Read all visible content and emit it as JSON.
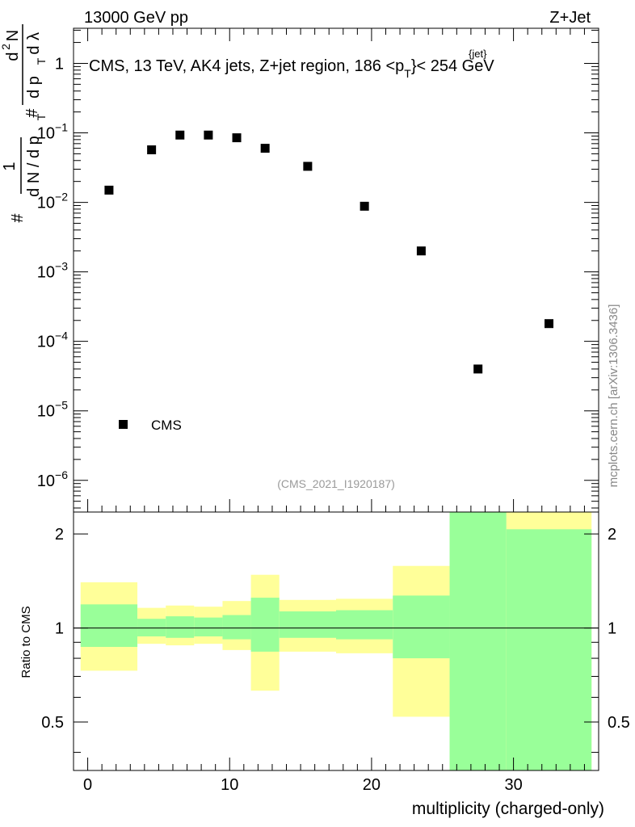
{
  "header": {
    "energy_label": "13000 GeV pp",
    "process_label": "Z+Jet"
  },
  "side_label": "mcplots.cern.ch [arXiv:1306.3436]",
  "chart_data": [
    {
      "type": "scatter",
      "panel": "main",
      "title": "CMS, 13 TeV, AK4 jets, Z+jet region, 186 <p",
      "title_sup": "{jet}",
      "title_sub": "T",
      "title_tail": "}< 254 GeV",
      "ylabel_parts": [
        "#",
        "1",
        "d N / d p",
        "T",
        "#",
        "d",
        "2",
        "N",
        "d p",
        "T",
        "d",
        "λ"
      ],
      "yscale": "log",
      "ylim": [
        3.5e-07,
        3.2
      ],
      "y_ticks": [
        {
          "value": 1,
          "label": "1",
          "base": "",
          "exp": ""
        },
        {
          "value": 0.1,
          "label": "",
          "base": "10",
          "exp": "−1"
        },
        {
          "value": 0.01,
          "label": "",
          "base": "10",
          "exp": "−2"
        },
        {
          "value": 0.001,
          "label": "",
          "base": "10",
          "exp": "−3"
        },
        {
          "value": 0.0001,
          "label": "",
          "base": "10",
          "exp": "−4"
        },
        {
          "value": 1e-05,
          "label": "",
          "base": "10",
          "exp": "−5"
        },
        {
          "value": 1e-06,
          "label": "",
          "base": "10",
          "exp": "−6"
        }
      ],
      "xlim": [
        -1,
        36
      ],
      "legend": {
        "placement": "bottom-left",
        "entries": [
          "CMS"
        ]
      },
      "analysis_label": "(CMS_2021_I1920187)",
      "series": [
        {
          "name": "CMS",
          "x": [
            1.5,
            4.5,
            6.5,
            8.5,
            10.5,
            12.5,
            15.5,
            19.5,
            23.5,
            27.5,
            32.5
          ],
          "y": [
            0.015,
            0.057,
            0.093,
            0.093,
            0.085,
            0.06,
            0.033,
            0.0088,
            0.002,
            4e-05,
            0.00018
          ]
        }
      ]
    },
    {
      "type": "area",
      "panel": "ratio",
      "ylabel": "Ratio to CMS",
      "xlabel": "multiplicity (charged-only)",
      "yscale": "log",
      "ylim": [
        0.35,
        2.35
      ],
      "xlim": [
        -1,
        36
      ],
      "x_ticks": [
        0,
        10,
        20,
        30
      ],
      "y_ticks": [
        {
          "value": 0.5,
          "label": "0.5"
        },
        {
          "value": 1,
          "label": "1"
        },
        {
          "value": 2,
          "label": "2"
        }
      ],
      "reference_line": 1,
      "bands": [
        {
          "x0": -0.5,
          "x1": 3.5,
          "inner": [
            0.87,
            1.19
          ],
          "outer": [
            0.73,
            1.4
          ]
        },
        {
          "x0": 3.5,
          "x1": 5.5,
          "inner": [
            0.94,
            1.07
          ],
          "outer": [
            0.89,
            1.16
          ]
        },
        {
          "x0": 5.5,
          "x1": 7.5,
          "inner": [
            0.93,
            1.09
          ],
          "outer": [
            0.88,
            1.18
          ]
        },
        {
          "x0": 7.5,
          "x1": 9.5,
          "inner": [
            0.94,
            1.08
          ],
          "outer": [
            0.89,
            1.17
          ]
        },
        {
          "x0": 9.5,
          "x1": 11.5,
          "inner": [
            0.92,
            1.1
          ],
          "outer": [
            0.85,
            1.22
          ]
        },
        {
          "x0": 11.5,
          "x1": 13.5,
          "inner": [
            0.84,
            1.25
          ],
          "outer": [
            0.63,
            1.48
          ]
        },
        {
          "x0": 13.5,
          "x1": 17.5,
          "inner": [
            0.93,
            1.13
          ],
          "outer": [
            0.84,
            1.23
          ]
        },
        {
          "x0": 17.5,
          "x1": 21.5,
          "inner": [
            0.92,
            1.14
          ],
          "outer": [
            0.83,
            1.24
          ]
        },
        {
          "x0": 21.5,
          "x1": 25.5,
          "inner": [
            0.8,
            1.27
          ],
          "outer": [
            0.52,
            1.58
          ]
        },
        {
          "x0": 25.5,
          "x1": 29.5,
          "inner": [
            0.35,
            2.35
          ],
          "outer": [
            0.35,
            2.35
          ]
        },
        {
          "x0": 29.5,
          "x1": 35.5,
          "inner": [
            0.35,
            2.07
          ],
          "outer": [
            0.35,
            2.35
          ]
        }
      ]
    }
  ],
  "colors": {
    "inner_band": "#99ff99",
    "outer_band": "#ffff99",
    "marker": "#000000",
    "analysis_label": "#9a9a9a",
    "side_label": "#888888"
  }
}
